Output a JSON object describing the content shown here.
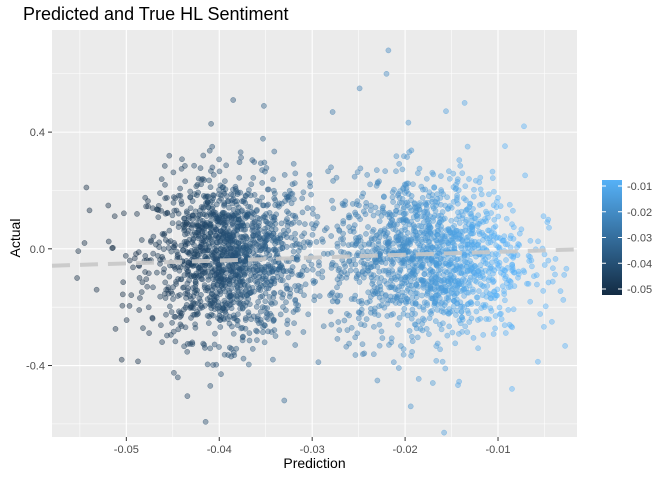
{
  "chart_data": {
    "type": "scatter",
    "title": "Predicted and True HL Sentiment",
    "xlabel": "Prediction",
    "ylabel": "Actual",
    "xlim": [
      -0.058,
      -0.0015
    ],
    "ylim": [
      -0.645,
      0.75
    ],
    "x_ticks": [
      -0.05,
      -0.04,
      -0.03,
      -0.02,
      -0.01
    ],
    "x_tick_labels": [
      "-0.05",
      "-0.04",
      "-0.03",
      "-0.02",
      "-0.01"
    ],
    "y_ticks": [
      -0.4,
      0.0,
      0.4
    ],
    "y_tick_labels": [
      "-0.4",
      "0.0",
      "0.4"
    ],
    "grid": true,
    "legend": {
      "placement": "right",
      "type": "colorbar",
      "labels": [
        "-0.01",
        "-0.02",
        "-0.03",
        "-0.04",
        "-0.05"
      ],
      "values": [
        -0.01,
        -0.02,
        -0.03,
        -0.04,
        -0.05
      ],
      "low_color": "#132B43",
      "high_color": "#56B1F7"
    },
    "clusters": [
      {
        "x_center": -0.039,
        "x_sd": 0.0043,
        "y_center": -0.03,
        "y_sd": 0.14,
        "count": 1500
      },
      {
        "x_center": -0.0175,
        "x_sd": 0.0052,
        "y_center": -0.03,
        "y_sd": 0.14,
        "count": 1500
      }
    ],
    "outliers": [
      {
        "x": -0.0385,
        "y": 0.51
      },
      {
        "x": -0.0352,
        "y": 0.49
      },
      {
        "x": -0.0218,
        "y": 0.68
      },
      {
        "x": -0.022,
        "y": 0.6
      },
      {
        "x": -0.0249,
        "y": 0.55
      },
      {
        "x": -0.0136,
        "y": 0.5
      },
      {
        "x": -0.0072,
        "y": 0.42
      },
      {
        "x": -0.0158,
        "y": -0.63
      },
      {
        "x": -0.033,
        "y": -0.52
      },
      {
        "x": -0.0194,
        "y": -0.54
      },
      {
        "x": -0.0543,
        "y": 0.21
      },
      {
        "x": -0.0545,
        "y": 0.02
      },
      {
        "x": -0.0532,
        "y": -0.14
      },
      {
        "x": -0.0505,
        "y": -0.38
      },
      {
        "x": -0.0553,
        "y": -0.1
      },
      {
        "x": -0.0085,
        "y": -0.48
      },
      {
        "x": -0.0042,
        "y": -0.25
      },
      {
        "x": -0.0046,
        "y": 0.1
      }
    ],
    "trend_line": {
      "x": [
        -0.058,
        -0.0015
      ],
      "y": [
        -0.058,
        -0.002
      ],
      "style": "dashed",
      "color": "#c8c8c8"
    }
  }
}
